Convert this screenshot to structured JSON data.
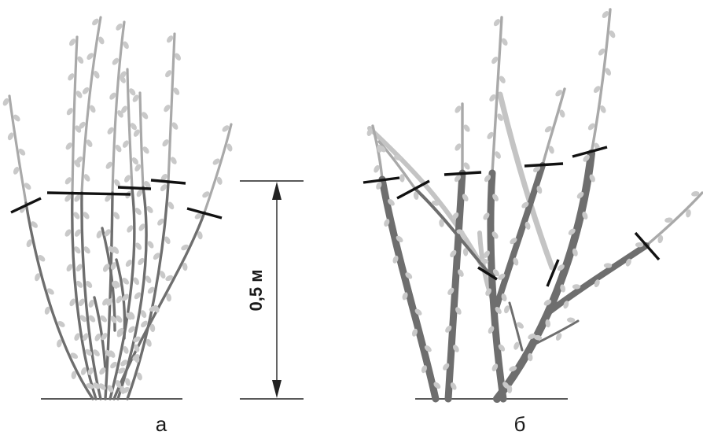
{
  "diagram": {
    "panel_a": {
      "label": "а"
    },
    "panel_b": {
      "label": "б"
    },
    "dimension": {
      "label": "0,5 м"
    },
    "colors": {
      "stem_dark": "#6e6e6e",
      "stem_light": "#a9a9a9",
      "stem_pale": "#c4c4c4",
      "bud": "#c9c9c9",
      "cut_mark": "#111111",
      "ground": "#222222"
    }
  }
}
